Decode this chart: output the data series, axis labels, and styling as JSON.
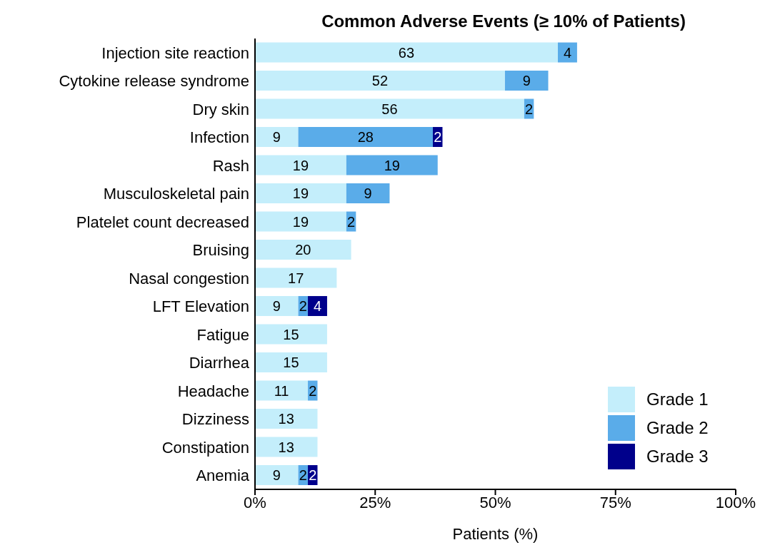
{
  "chart_data": {
    "type": "bar",
    "orientation": "horizontal",
    "stacked": true,
    "title": "Common Adverse Events (≥ 10% of Patients)",
    "xlabel": "Patients (%)",
    "categories": [
      "Injection site reaction",
      "Cytokine release syndrome",
      "Dry skin",
      "Infection",
      "Rash",
      "Musculoskeletal pain",
      "Platelet count decreased",
      "Bruising",
      "Nasal congestion",
      "LFT Elevation",
      "Fatigue",
      "Diarrhea",
      "Headache",
      "Dizziness",
      "Constipation",
      "Anemia"
    ],
    "series": [
      {
        "name": "Grade 1",
        "color": "#c4eefb",
        "values": [
          63,
          52,
          56,
          9,
          19,
          19,
          19,
          20,
          17,
          9,
          15,
          15,
          11,
          13,
          13,
          9
        ]
      },
      {
        "name": "Grade 2",
        "color": "#5aace9",
        "values": [
          4,
          9,
          2,
          28,
          19,
          9,
          2,
          null,
          null,
          2,
          null,
          null,
          2,
          null,
          null,
          2
        ]
      },
      {
        "name": "Grade 3",
        "color": "#00008b",
        "values": [
          null,
          null,
          null,
          2,
          null,
          null,
          null,
          null,
          null,
          4,
          null,
          null,
          null,
          null,
          null,
          2
        ]
      }
    ],
    "xlim": [
      0,
      100
    ],
    "xticks": [
      {
        "value": 0,
        "label": "0%"
      },
      {
        "value": 25,
        "label": "25%"
      },
      {
        "value": 50,
        "label": "50%"
      },
      {
        "value": 75,
        "label": "75%"
      },
      {
        "value": 100,
        "label": "100%"
      }
    ],
    "data_labels": true,
    "grid": false,
    "legend": "bottom right"
  }
}
